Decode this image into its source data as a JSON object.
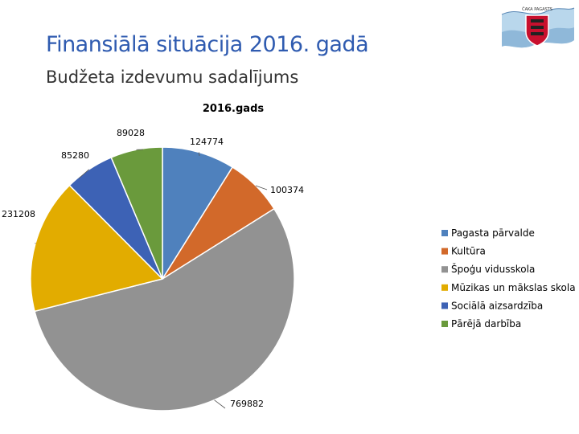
{
  "slide": {
    "title": "Finansiālā situācija 2016. gadā",
    "subtitle": "Budžeta izdevumu sadalījums"
  },
  "logo": {
    "caption": "ČAKA PAGASTS",
    "icon": "coat-of-arms-icon"
  },
  "chart_data": {
    "type": "pie",
    "title": "2016.gads",
    "categories": [
      "Pagasta pārvalde",
      "Kultūra",
      "Špoģu vidusskola",
      "Mūzikas un mākslas skola",
      "Sociālā aizsardzība",
      "Pārējā darbība"
    ],
    "values": [
      124774,
      100374,
      769882,
      231208,
      85280,
      89028
    ],
    "labels": [
      "124774",
      "100374",
      "769882",
      "231208",
      "85280",
      "89028"
    ],
    "colors": [
      "#4f81bd",
      "#d2692a",
      "#929292",
      "#e2ac00",
      "#3d62b5",
      "#6a9a3c"
    ],
    "legend_position": "right"
  }
}
